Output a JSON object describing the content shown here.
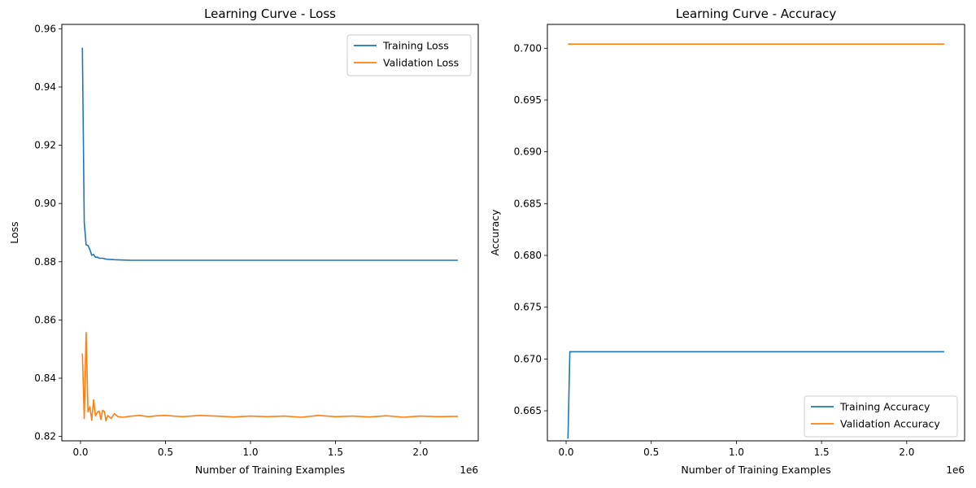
{
  "chart_data": [
    {
      "type": "line",
      "title": "Learning Curve - Loss",
      "xlabel": "Number of Training Examples",
      "ylabel": "Loss",
      "x_multiplier_label": "1e6",
      "xlim": [
        -0.11,
        2.34
      ],
      "ylim": [
        0.8185,
        0.9615
      ],
      "xticks": [
        0,
        0.5,
        1.0,
        1.5,
        2.0
      ],
      "xtick_labels": [
        "0.0",
        "0.5",
        "1.0",
        "1.5",
        "2.0"
      ],
      "yticks": [
        0.82,
        0.84,
        0.86,
        0.88,
        0.9,
        0.92,
        0.94,
        0.96
      ],
      "ytick_labels": [
        "0.82",
        "0.84",
        "0.86",
        "0.88",
        "0.90",
        "0.92",
        "0.94",
        "0.96"
      ],
      "grid": false,
      "legend_position": "top-right",
      "series": [
        {
          "name": "Training Loss",
          "color": "#1f77b4",
          "x": [
            0.011,
            0.022,
            0.033,
            0.044,
            0.055,
            0.066,
            0.077,
            0.088,
            0.099,
            0.11,
            0.13,
            0.15,
            0.17,
            0.2,
            0.25,
            0.3,
            0.35,
            0.4,
            0.5,
            0.6,
            0.8,
            1.0,
            1.2,
            1.5,
            1.8,
            2.0,
            2.22
          ],
          "y": [
            0.9535,
            0.8935,
            0.8858,
            0.8856,
            0.8842,
            0.8822,
            0.8825,
            0.8815,
            0.8816,
            0.8812,
            0.8812,
            0.8809,
            0.8808,
            0.8807,
            0.8806,
            0.8805,
            0.8805,
            0.8805,
            0.8805,
            0.8805,
            0.8805,
            0.8805,
            0.8805,
            0.8805,
            0.8805,
            0.8805,
            0.8805
          ]
        },
        {
          "name": "Validation Loss",
          "color": "#ff7f0e",
          "x": [
            0.011,
            0.022,
            0.033,
            0.044,
            0.055,
            0.066,
            0.077,
            0.088,
            0.099,
            0.11,
            0.12,
            0.13,
            0.14,
            0.15,
            0.16,
            0.18,
            0.2,
            0.22,
            0.25,
            0.3,
            0.35,
            0.4,
            0.45,
            0.5,
            0.6,
            0.7,
            0.8,
            0.9,
            1.0,
            1.1,
            1.2,
            1.3,
            1.4,
            1.5,
            1.6,
            1.7,
            1.8,
            1.9,
            2.0,
            2.1,
            2.22
          ],
          "y": [
            0.8485,
            0.8262,
            0.8557,
            0.8285,
            0.8302,
            0.8256,
            0.8326,
            0.8271,
            0.8283,
            0.8287,
            0.8258,
            0.829,
            0.8286,
            0.8254,
            0.8272,
            0.8262,
            0.8278,
            0.8268,
            0.8266,
            0.827,
            0.8272,
            0.8268,
            0.8271,
            0.8272,
            0.8268,
            0.8272,
            0.827,
            0.8267,
            0.827,
            0.8268,
            0.827,
            0.8266,
            0.8272,
            0.8268,
            0.827,
            0.8267,
            0.8271,
            0.8266,
            0.827,
            0.8268,
            0.8269
          ]
        }
      ]
    },
    {
      "type": "line",
      "title": "Learning Curve - Accuracy",
      "xlabel": "Number of Training Examples",
      "ylabel": "Accuracy",
      "x_multiplier_label": "1e6",
      "xlim": [
        -0.11,
        2.34
      ],
      "ylim": [
        0.6621,
        0.7023
      ],
      "xticks": [
        0,
        0.5,
        1.0,
        1.5,
        2.0
      ],
      "xtick_labels": [
        "0.0",
        "0.5",
        "1.0",
        "1.5",
        "2.0"
      ],
      "yticks": [
        0.665,
        0.67,
        0.675,
        0.68,
        0.685,
        0.69,
        0.695,
        0.7
      ],
      "ytick_labels": [
        "0.665",
        "0.670",
        "0.675",
        "0.680",
        "0.685",
        "0.690",
        "0.695",
        "0.700"
      ],
      "grid": false,
      "legend_position": "bottom-right",
      "series": [
        {
          "name": "Training Accuracy",
          "color": "#1f77b4",
          "x": [
            0.011,
            0.022,
            2.22
          ],
          "y": [
            0.6623,
            0.6707,
            0.6707
          ]
        },
        {
          "name": "Validation Accuracy",
          "color": "#ff7f0e",
          "x": [
            0.011,
            2.22
          ],
          "y": [
            0.7004,
            0.7004
          ]
        }
      ]
    }
  ]
}
